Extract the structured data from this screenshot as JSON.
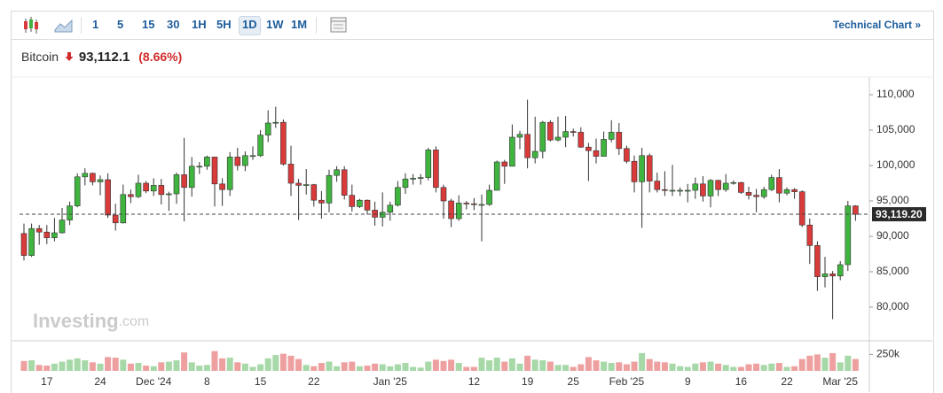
{
  "toolbar": {
    "intervals": [
      "1",
      "5",
      "15",
      "30",
      "1H",
      "5H",
      "1D",
      "1W",
      "1M"
    ],
    "selected_index": 6,
    "link": "Technical Chart »"
  },
  "header": {
    "name": "Bitcoin",
    "price": "93,112.1",
    "change": "(8.66%)"
  },
  "watermark": {
    "brand": "Investing",
    "suffix": ".com"
  },
  "chart_data": {
    "type": "candlestick",
    "categories": [
      null,
      null,
      null,
      "17",
      null,
      null,
      null,
      null,
      null,
      null,
      "24",
      null,
      null,
      null,
      null,
      null,
      null,
      "Dec '24",
      null,
      null,
      null,
      null,
      null,
      null,
      "8",
      null,
      null,
      null,
      null,
      null,
      null,
      "15",
      null,
      null,
      null,
      null,
      null,
      null,
      "22",
      null,
      null,
      null,
      null,
      null,
      null,
      null,
      null,
      null,
      "Jan '25",
      null,
      null,
      null,
      null,
      null,
      null,
      null,
      null,
      null,
      null,
      "12",
      null,
      null,
      null,
      null,
      null,
      null,
      "19",
      null,
      null,
      null,
      null,
      null,
      "25",
      null,
      null,
      null,
      null,
      null,
      null,
      "Feb '25",
      null,
      null,
      null,
      null,
      null,
      null,
      null,
      "9",
      null,
      null,
      null,
      null,
      null,
      null,
      "16",
      null,
      null,
      null,
      null,
      null,
      "22",
      null,
      null,
      null,
      null,
      null,
      null,
      "Mar '25",
      null,
      null
    ],
    "open": [
      90400,
      87300,
      91100,
      90600,
      89800,
      90500,
      92300,
      94300,
      98400,
      98900,
      97700,
      98000,
      93000,
      91900,
      95900,
      95600,
      97500,
      96400,
      97200,
      95900,
      96000,
      98700,
      96900,
      99900,
      99900,
      101200,
      97400,
      96600,
      101200,
      100000,
      101400,
      101400,
      104300,
      106000,
      106100,
      100200,
      97500,
      97200,
      97300,
      95100,
      94700,
      98600,
      99400,
      95800,
      94200,
      95100,
      93700,
      92700,
      93400,
      94400,
      96900,
      98100,
      98200,
      98300,
      102200,
      96900,
      95000,
      92500,
      94700,
      94600,
      94500,
      94500,
      96500,
      100500,
      99900,
      104000,
      104400,
      101100,
      102000,
      106100,
      103600,
      104000,
      104800,
      104700,
      102600,
      102100,
      101300,
      103700,
      104700,
      102400,
      100600,
      97700,
      101400,
      97800,
      96600,
      96500,
      96500,
      96500,
      96500,
      97400,
      95700,
      97900,
      96600,
      97500,
      97600,
      96200,
      95800,
      95600,
      96600,
      98300,
      96100,
      96600,
      96300,
      91600,
      88700,
      84300,
      84700,
      84400,
      86000,
      94300
    ],
    "high": [
      91800,
      91800,
      91600,
      91600,
      92600,
      94000,
      94900,
      98900,
      99600,
      99000,
      98600,
      98900,
      94600,
      97300,
      96600,
      98700,
      97800,
      98200,
      98100,
      96300,
      99000,
      103900,
      101200,
      100500,
      101400,
      101200,
      98200,
      101900,
      102500,
      102000,
      102700,
      105000,
      107800,
      108300,
      106500,
      102800,
      98100,
      99500,
      97400,
      96400,
      99400,
      99900,
      99900,
      97300,
      95300,
      95200,
      94900,
      96200,
      94900,
      97800,
      98900,
      98800,
      98800,
      102500,
      102700,
      97300,
      95300,
      95800,
      95000,
      95400,
      95900,
      97300,
      100700,
      100800,
      105800,
      104900,
      109300,
      106900,
      106300,
      106400,
      106900,
      107000,
      105200,
      105400,
      103200,
      103800,
      104800,
      106400,
      106000,
      102800,
      101400,
      102500,
      101700,
      99000,
      99200,
      100100,
      96900,
      97400,
      98300,
      98500,
      98100,
      98000,
      98800,
      97900,
      97700,
      97000,
      96700,
      97000,
      98700,
      99500,
      96900,
      96800,
      96500,
      92500,
      89300,
      87100,
      85100,
      86500,
      95000,
      94400
    ],
    "low": [
      86600,
      87100,
      88800,
      88900,
      89300,
      90400,
      91600,
      94100,
      97200,
      97200,
      95800,
      92600,
      90800,
      91800,
      94700,
      95400,
      96100,
      95700,
      94500,
      93600,
      94600,
      92100,
      95600,
      98800,
      99400,
      94200,
      94300,
      95700,
      99300,
      99200,
      100800,
      101200,
      103300,
      105300,
      100000,
      95700,
      92300,
      95900,
      94200,
      92500,
      93400,
      97700,
      95200,
      93500,
      94000,
      93100,
      91500,
      91400,
      92200,
      94200,
      96000,
      97300,
      97300,
      97900,
      96200,
      92500,
      91300,
      92200,
      93800,
      93700,
      89300,
      94300,
      96500,
      97400,
      99900,
      102300,
      99600,
      100300,
      101000,
      103400,
      103400,
      102600,
      104100,
      102500,
      97800,
      100300,
      101300,
      103300,
      101500,
      100300,
      96200,
      91200,
      96200,
      96200,
      95700,
      95700,
      95700,
      94800,
      95300,
      94900,
      94100,
      95700,
      96300,
      97300,
      96000,
      95200,
      93400,
      95300,
      96400,
      94800,
      95800,
      95300,
      91300,
      86100,
      82300,
      82800,
      78300,
      83800,
      85100,
      92200
    ],
    "close": [
      87300,
      91100,
      90600,
      89800,
      90500,
      92300,
      94300,
      98400,
      98900,
      97700,
      98000,
      93000,
      91900,
      95900,
      95600,
      97500,
      96400,
      97200,
      95900,
      96000,
      98700,
      96900,
      99900,
      99900,
      101200,
      97400,
      96600,
      101200,
      100000,
      101400,
      101400,
      104300,
      106000,
      106100,
      100200,
      97500,
      97200,
      97300,
      95100,
      94700,
      98600,
      99400,
      95800,
      94200,
      95100,
      93700,
      92700,
      93400,
      94400,
      96900,
      98100,
      98200,
      98300,
      102200,
      96900,
      95000,
      92500,
      94700,
      94600,
      94500,
      94500,
      96500,
      100500,
      99900,
      104000,
      104400,
      101100,
      102000,
      106100,
      103600,
      104000,
      104800,
      104700,
      102600,
      102100,
      101300,
      103700,
      104700,
      102400,
      100600,
      97700,
      101400,
      97800,
      96600,
      96500,
      96500,
      96500,
      96500,
      97400,
      95700,
      97900,
      96600,
      97500,
      97600,
      96200,
      95800,
      95600,
      96600,
      98300,
      96100,
      96600,
      96300,
      91600,
      88700,
      84300,
      84700,
      84400,
      86000,
      94300,
      93100
    ],
    "up_color": "#3fb43f",
    "down_color": "#d93a3a",
    "ylim": [
      75250,
      112000
    ],
    "yticks": [
      {
        "value": 80000,
        "label": "80,000"
      },
      {
        "value": 85000,
        "label": "85,000"
      },
      {
        "value": 90000,
        "label": "90,000"
      },
      {
        "value": 95000,
        "label": "95,000"
      },
      {
        "value": 100000,
        "label": "100,000"
      },
      {
        "value": 105000,
        "label": "105,000"
      },
      {
        "value": 110000,
        "label": "110,000"
      }
    ],
    "price_line": {
      "value": 93119.2,
      "label": "93,119.20"
    },
    "volume": {
      "values": [
        150000,
        160000,
        90000,
        80000,
        110000,
        140000,
        170000,
        190000,
        160000,
        130000,
        110000,
        210000,
        200000,
        170000,
        110000,
        120000,
        80000,
        70000,
        130000,
        140000,
        160000,
        280000,
        130000,
        80000,
        90000,
        300000,
        190000,
        200000,
        130000,
        110000,
        60000,
        100000,
        190000,
        240000,
        260000,
        230000,
        180000,
        90000,
        70000,
        120000,
        140000,
        70000,
        130000,
        140000,
        70000,
        80000,
        110000,
        100000,
        70000,
        100000,
        120000,
        60000,
        50000,
        140000,
        170000,
        150000,
        170000,
        120000,
        60000,
        60000,
        200000,
        160000,
        200000,
        140000,
        190000,
        110000,
        230000,
        170000,
        160000,
        140000,
        90000,
        90000,
        60000,
        100000,
        210000,
        160000,
        140000,
        120000,
        130000,
        100000,
        140000,
        270000,
        180000,
        140000,
        130000,
        110000,
        70000,
        60000,
        110000,
        130000,
        140000,
        110000,
        90000,
        60000,
        60000,
        100000,
        110000,
        90000,
        110000,
        120000,
        60000,
        70000,
        180000,
        230000,
        250000,
        200000,
        270000,
        130000,
        230000,
        180000
      ],
      "up_color": "#a7d8a7",
      "down_color": "#eea0a0",
      "ylim": [
        0,
        430000
      ],
      "yticks": [
        {
          "value": 250000,
          "label": "250k"
        }
      ]
    }
  }
}
